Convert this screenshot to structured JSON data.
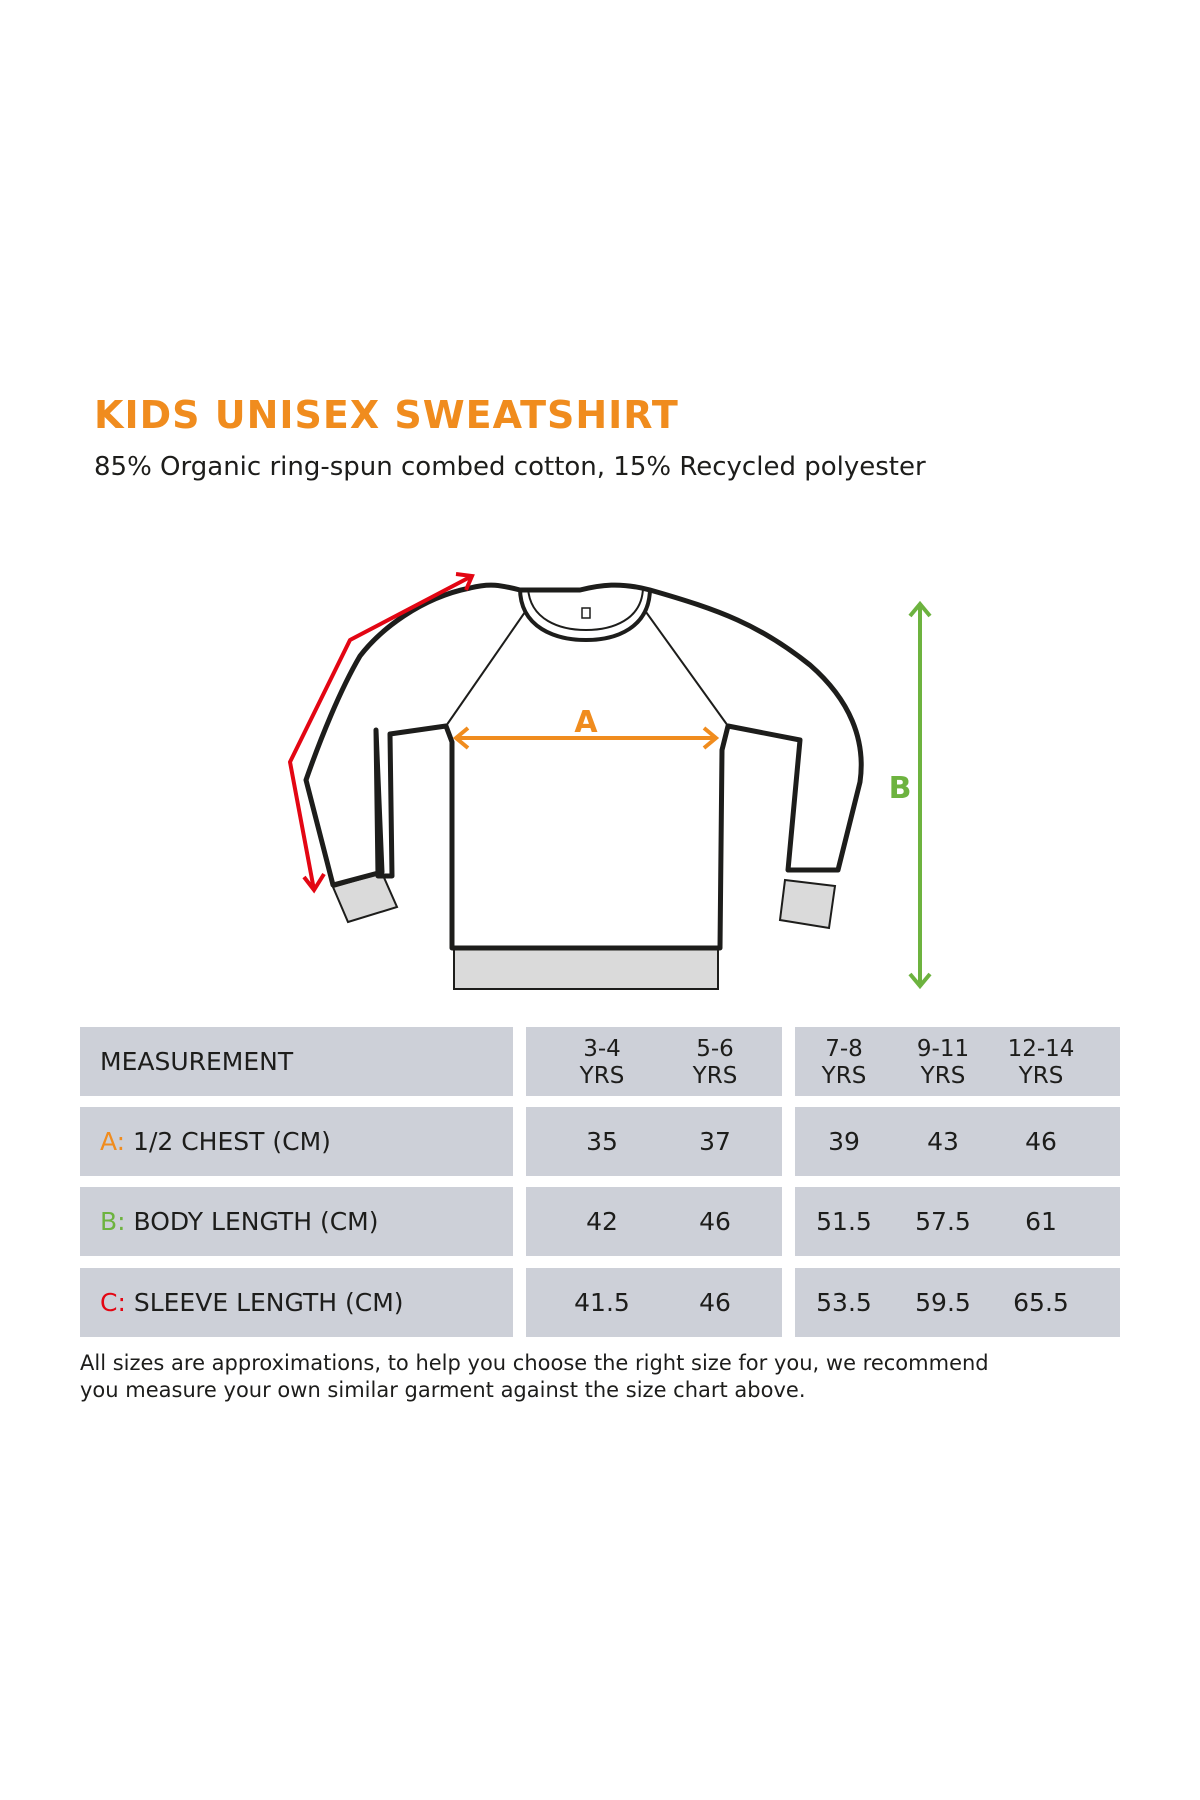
{
  "title": "KIDS UNISEX SWEATSHIRT",
  "subtitle": "85% Organic ring-spun combed cotton, 15% Recycled polyester",
  "diagram": {
    "label_a": "A",
    "label_b": "B",
    "colors": {
      "a": "#f08c1e",
      "b": "#6db33f",
      "c": "#e30613",
      "outline": "#1d1d1b",
      "rib": "#dadada"
    }
  },
  "table": {
    "header_label": "MEASUREMENT",
    "sizes": [
      {
        "line1": "3-4",
        "line2": "YRS"
      },
      {
        "line1": "5-6",
        "line2": "YRS"
      },
      {
        "line1": "7-8",
        "line2": "YRS"
      },
      {
        "line1": "9-11",
        "line2": "YRS"
      },
      {
        "line1": "12-14",
        "line2": "YRS"
      }
    ],
    "rows": [
      {
        "prefix": "A:",
        "label": " 1/2 CHEST (CM)",
        "values": [
          "35",
          "37",
          "39",
          "43",
          "46"
        ]
      },
      {
        "prefix": "B:",
        "label": " BODY LENGTH (CM)",
        "values": [
          "42",
          "46",
          "51.5",
          "57.5",
          "61"
        ]
      },
      {
        "prefix": "C:",
        "label": " SLEEVE LENGTH (CM)",
        "values": [
          "41.5",
          "46",
          "53.5",
          "59.5",
          "65.5"
        ]
      }
    ],
    "cell_color": "#cdd0d8"
  },
  "footnote": {
    "line1": "All sizes are approximations, to help you choose the right size for you, we recommend",
    "line2": "you measure your own similar garment against the size chart above."
  }
}
